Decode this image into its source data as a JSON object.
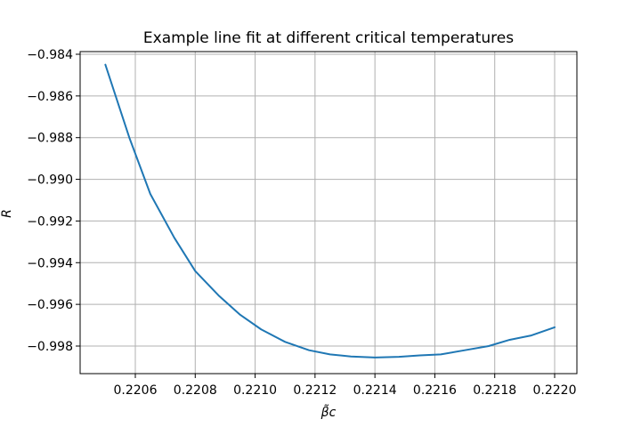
{
  "chart_data": {
    "type": "line",
    "title": "Example line fit at different critical temperatures",
    "xlabel": "β̃c",
    "ylabel": "R",
    "xlim": [
      0.22042,
      0.22022
    ],
    "ylim": [
      -0.9994,
      -0.9839
    ],
    "xticks": [
      0.2206,
      0.2208,
      0.221,
      0.2212,
      0.2214,
      0.2216,
      0.2218,
      0.222
    ],
    "xtick_labels": [
      "0.2206",
      "0.2208",
      "0.2210",
      "0.2212",
      "0.2214",
      "0.2216",
      "0.2218",
      "0.2220"
    ],
    "yticks": [
      -0.984,
      -0.986,
      -0.988,
      -0.99,
      -0.992,
      -0.994,
      -0.996,
      -0.998
    ],
    "ytick_labels": [
      "−0.984",
      "−0.986",
      "−0.988",
      "−0.990",
      "−0.992",
      "−0.994",
      "−0.996",
      "−0.998"
    ],
    "grid": true,
    "series": [
      {
        "color": "#1f77b4",
        "x": [
          0.2205,
          0.22058,
          0.22065,
          0.22073,
          0.2208,
          0.22088,
          0.22095,
          0.22102,
          0.2211,
          0.22118,
          0.22125,
          0.22132,
          0.2214,
          0.22148,
          0.22155,
          0.22162,
          0.2217,
          0.22178,
          0.22185,
          0.22192,
          0.222
        ],
        "y": [
          -0.9845,
          -0.988,
          -0.9907,
          -0.9928,
          -0.9944,
          -0.9956,
          -0.9965,
          -0.9972,
          -0.9978,
          -0.9982,
          -0.9984,
          -0.9985,
          -0.99855,
          -0.99852,
          -0.99845,
          -0.9984,
          -0.9982,
          -0.998,
          -0.9977,
          -0.9975,
          -0.9971
        ]
      }
    ]
  }
}
